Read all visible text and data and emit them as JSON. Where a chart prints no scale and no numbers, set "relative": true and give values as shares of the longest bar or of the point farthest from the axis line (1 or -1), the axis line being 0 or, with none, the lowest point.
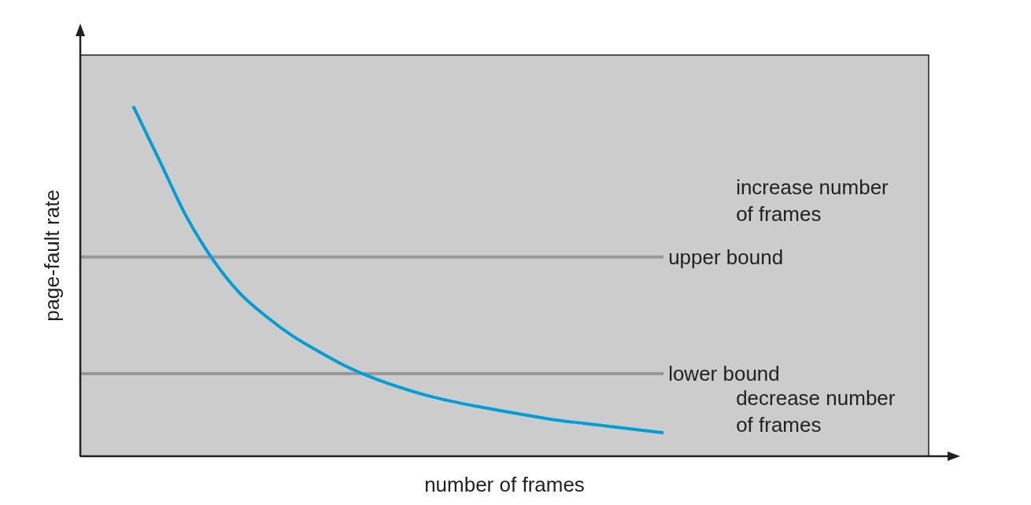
{
  "chart_data": {
    "type": "line",
    "relative": true,
    "xlabel": "number of frames",
    "ylabel": "page-fault rate",
    "line_style": "solid",
    "categories": [
      null,
      null,
      null,
      null,
      null,
      null,
      null,
      null,
      null,
      null,
      null,
      null,
      null,
      null,
      null,
      null,
      null,
      null,
      null,
      null,
      null,
      null,
      null,
      null,
      null,
      null,
      null,
      null,
      null,
      null,
      null,
      null,
      null
    ],
    "series": [
      {
        "color": "#00a0d6",
        "values": [
          null,
          null,
          1.0,
          0.843,
          0.685,
          0.562,
          0.467,
          0.4,
          0.344,
          0.299,
          0.258,
          0.225,
          0.198,
          0.175,
          0.157,
          0.142,
          0.128,
          0.115,
          0.103,
          0.094,
          0.085,
          0.076,
          0.067,
          null,
          null,
          null,
          null,
          null,
          null,
          null,
          null,
          null,
          null
        ]
      }
    ],
    "ref_lines": [
      {
        "axis": "y",
        "value": 0.569,
        "label": "upper bound",
        "color": "#999999",
        "line_style": "solid"
      },
      {
        "axis": "y",
        "value": 0.236,
        "label": "lower bound",
        "color": "#999999",
        "line_style": "solid"
      }
    ],
    "annotations": [
      "increase number of frames",
      "decrease number of frames"
    ]
  }
}
